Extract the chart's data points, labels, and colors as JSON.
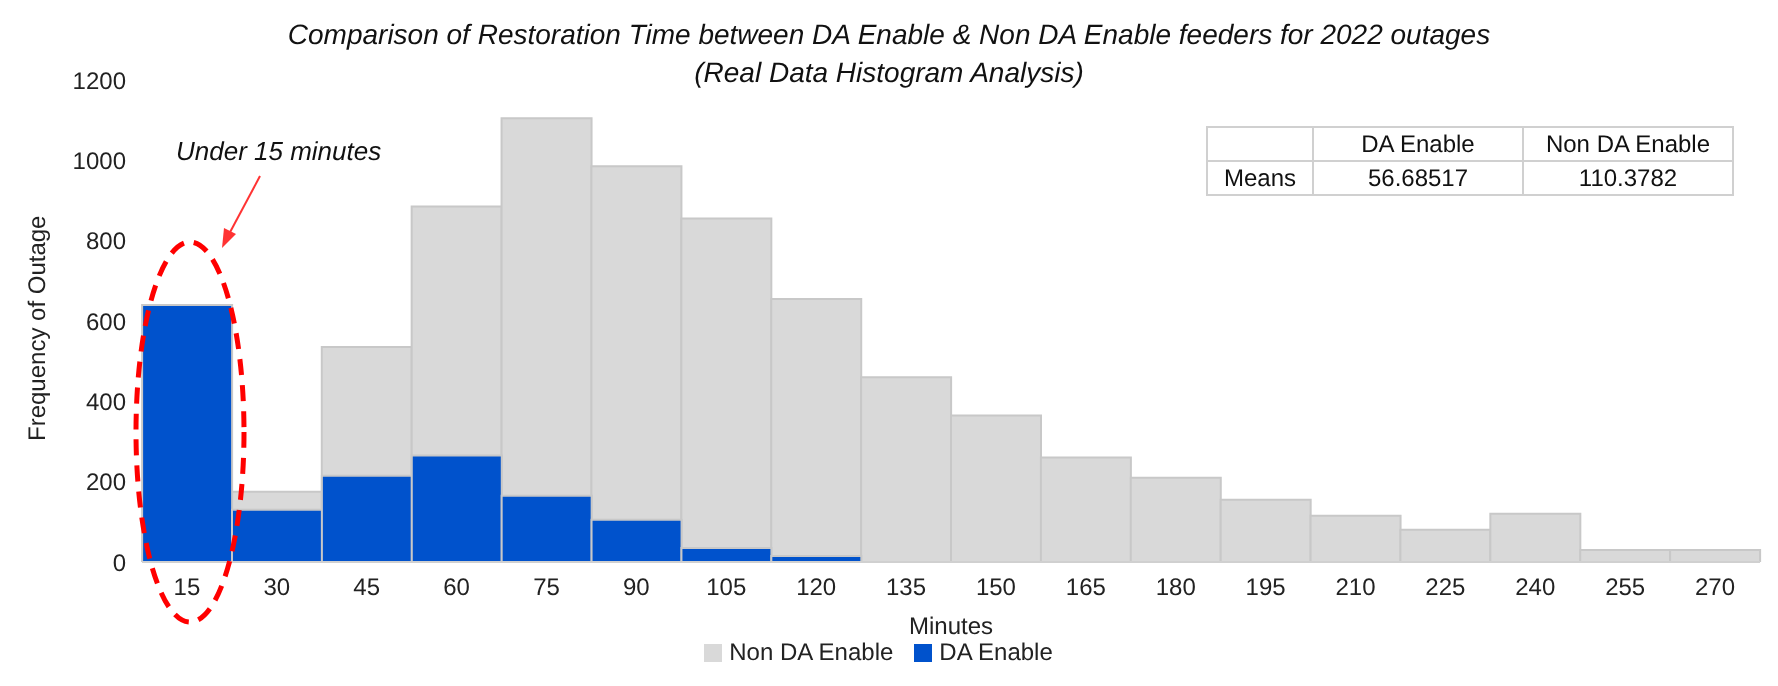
{
  "chart_data": {
    "type": "bar",
    "title": "Comparison of Restoration Time between DA Enable & Non DA Enable feeders for 2022 outages",
    "subtitle": "(Real Data Histogram Analysis)",
    "xlabel": "Minutes",
    "ylabel": "Frequency of Outage",
    "categories": [
      "15",
      "30",
      "45",
      "60",
      "75",
      "90",
      "105",
      "120",
      "135",
      "150",
      "165",
      "180",
      "195",
      "210",
      "225",
      "240",
      "255",
      "270"
    ],
    "series": [
      {
        "name": "Non DA Enable",
        "color": "#d9d9d9",
        "values": [
          null,
          175,
          535,
          885,
          1105,
          985,
          855,
          655,
          460,
          365,
          260,
          210,
          155,
          115,
          80,
          120,
          30,
          30
        ]
      },
      {
        "name": "DA Enable",
        "color": "#0052cc",
        "values": [
          640,
          130,
          215,
          265,
          165,
          105,
          35,
          15,
          null,
          null,
          null,
          null,
          null,
          null,
          null,
          null,
          null,
          null
        ]
      }
    ],
    "ylim": [
      0,
      1200
    ],
    "yticks": [
      0,
      200,
      400,
      600,
      800,
      1000,
      1200
    ],
    "grid": false,
    "legend": "bottom",
    "annotations": [
      "Under 15 minutes",
      "Means",
      "DA Enable",
      "Non DA Enable",
      "56.68517",
      "110.3782"
    ]
  }
}
